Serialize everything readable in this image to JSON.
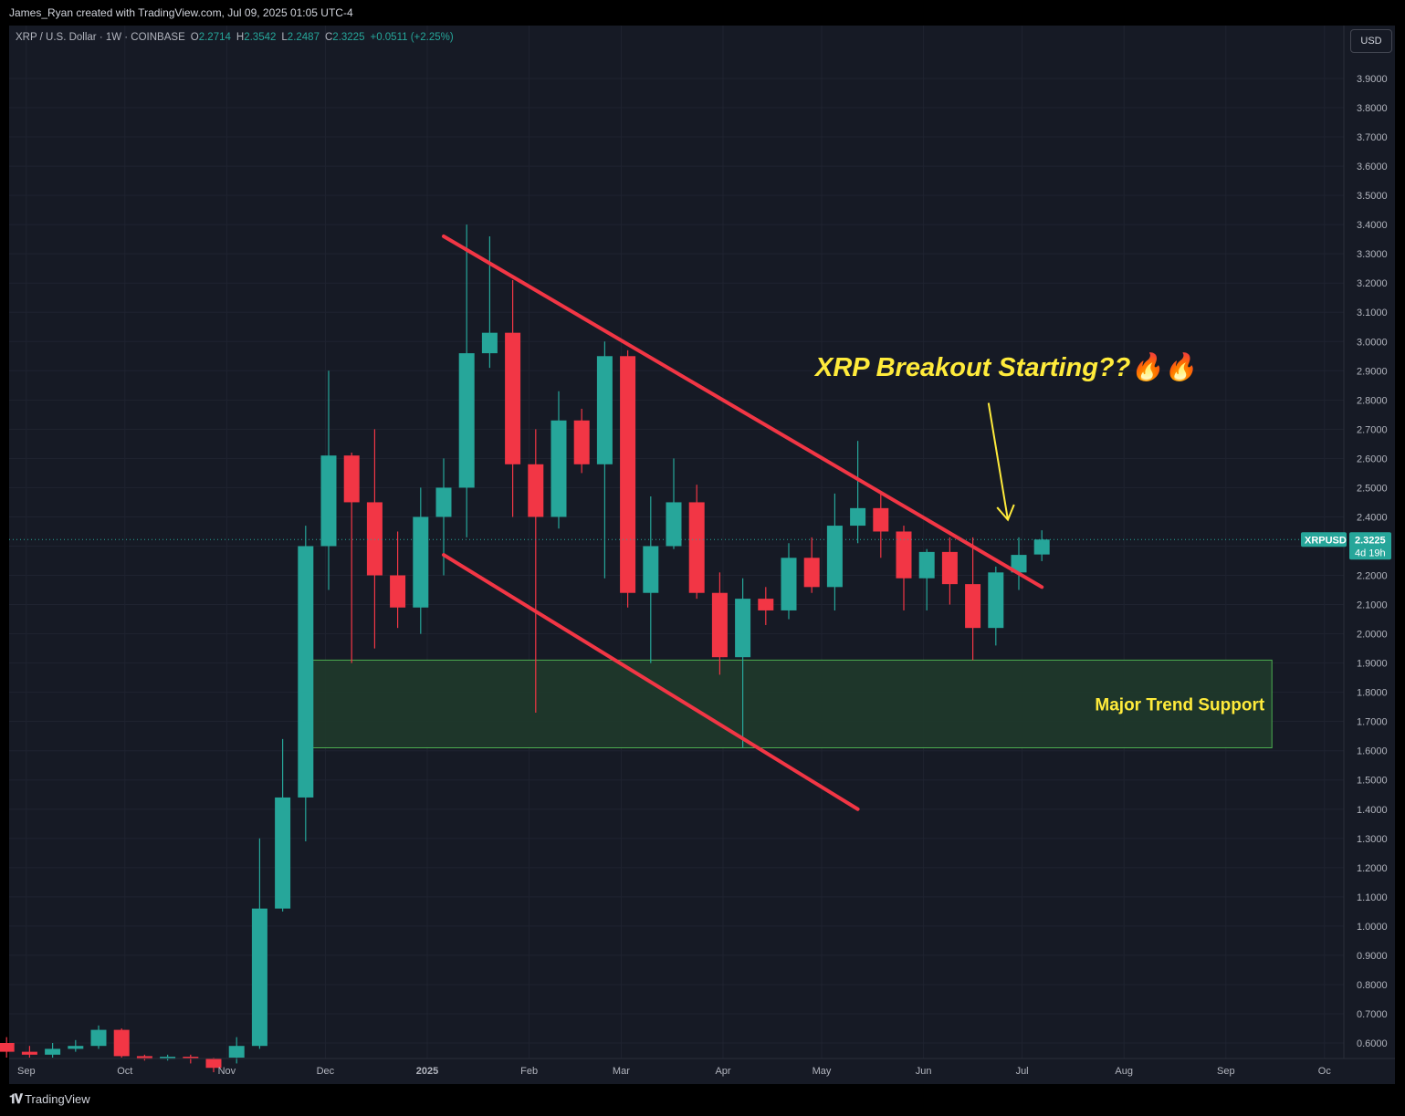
{
  "header": {
    "attribution": "James_Ryan created with TradingView.com, Jul 09, 2025 01:05 UTC-4"
  },
  "legend": {
    "symbol": "XRP / U.S. Dollar · 1W · COINBASE",
    "o_label": "O",
    "o": "2.2714",
    "h_label": "H",
    "h": "2.3542",
    "l_label": "L",
    "l": "2.2487",
    "c_label": "C",
    "c": "2.3225",
    "change": "+0.0511 (+2.25%)"
  },
  "currency_button": "USD",
  "price_badge": {
    "symbol": "XRPUSD",
    "price": "2.3225",
    "countdown": "4d 19h"
  },
  "footer": {
    "brand": "TradingView"
  },
  "colors": {
    "up": "#26a69a",
    "down": "#f23645",
    "trendline": "#f23645",
    "annotation": "#ffeb3b",
    "support_fill": "#1f3a2b",
    "support_border": "#4caf50"
  },
  "chart_data": {
    "type": "candlestick",
    "ylim": [
      0.55,
      4.0
    ],
    "y_ticks": [
      "0.6000",
      "0.7000",
      "0.8000",
      "0.9000",
      "1.0000",
      "1.1000",
      "1.2000",
      "1.3000",
      "1.4000",
      "1.5000",
      "1.6000",
      "1.7000",
      "1.8000",
      "1.9000",
      "2.0000",
      "2.1000",
      "2.2000",
      "2.3000",
      "2.4000",
      "2.5000",
      "2.6000",
      "2.7000",
      "2.8000",
      "2.9000",
      "3.0000",
      "3.1000",
      "3.2000",
      "3.3000",
      "3.4000",
      "3.5000",
      "3.6000",
      "3.7000",
      "3.8000",
      "3.9000"
    ],
    "x_ticks": [
      {
        "label": "Sep",
        "date": "2024-09-01"
      },
      {
        "label": "Oct",
        "date": "2024-10-01"
      },
      {
        "label": "Nov",
        "date": "2024-11-01"
      },
      {
        "label": "Dec",
        "date": "2024-12-01"
      },
      {
        "label": "2025",
        "date": "2025-01-01"
      },
      {
        "label": "Feb",
        "date": "2025-02-01"
      },
      {
        "label": "Mar",
        "date": "2025-03-01"
      },
      {
        "label": "Apr",
        "date": "2025-04-01"
      },
      {
        "label": "May",
        "date": "2025-05-01"
      },
      {
        "label": "Jun",
        "date": "2025-06-01"
      },
      {
        "label": "Jul",
        "date": "2025-07-01"
      },
      {
        "label": "Aug",
        "date": "2025-08-01"
      },
      {
        "label": "Sep",
        "date": "2025-09-01"
      },
      {
        "label": "Oc",
        "date": "2025-10-01"
      }
    ],
    "candles": [
      {
        "date": "2024-08-26",
        "o": 0.6,
        "h": 0.62,
        "l": 0.55,
        "c": 0.57
      },
      {
        "date": "2024-09-02",
        "o": 0.57,
        "h": 0.59,
        "l": 0.55,
        "c": 0.56
      },
      {
        "date": "2024-09-09",
        "o": 0.56,
        "h": 0.6,
        "l": 0.55,
        "c": 0.58
      },
      {
        "date": "2024-09-16",
        "o": 0.58,
        "h": 0.61,
        "l": 0.57,
        "c": 0.59
      },
      {
        "date": "2024-09-23",
        "o": 0.59,
        "h": 0.66,
        "l": 0.58,
        "c": 0.645
      },
      {
        "date": "2024-09-30",
        "o": 0.645,
        "h": 0.65,
        "l": 0.55,
        "c": 0.555
      },
      {
        "date": "2024-10-07",
        "o": 0.555,
        "h": 0.56,
        "l": 0.54,
        "c": 0.545
      },
      {
        "date": "2024-10-14",
        "o": 0.545,
        "h": 0.56,
        "l": 0.54,
        "c": 0.553
      },
      {
        "date": "2024-10-21",
        "o": 0.553,
        "h": 0.56,
        "l": 0.53,
        "c": 0.548
      },
      {
        "date": "2024-10-28",
        "o": 0.548,
        "h": 0.55,
        "l": 0.5,
        "c": 0.515
      },
      {
        "date": "2024-11-04",
        "o": 0.55,
        "h": 0.62,
        "l": 0.53,
        "c": 0.59
      },
      {
        "date": "2024-11-11",
        "o": 0.59,
        "h": 1.3,
        "l": 0.58,
        "c": 1.06
      },
      {
        "date": "2024-11-18",
        "o": 1.06,
        "h": 1.64,
        "l": 1.05,
        "c": 1.44
      },
      {
        "date": "2024-11-25",
        "o": 1.44,
        "h": 2.37,
        "l": 1.29,
        "c": 2.3
      },
      {
        "date": "2024-12-02",
        "o": 2.3,
        "h": 2.9,
        "l": 2.15,
        "c": 2.61
      },
      {
        "date": "2024-12-09",
        "o": 2.61,
        "h": 2.62,
        "l": 1.9,
        "c": 2.45
      },
      {
        "date": "2024-12-16",
        "o": 2.45,
        "h": 2.7,
        "l": 1.95,
        "c": 2.2
      },
      {
        "date": "2024-12-23",
        "o": 2.2,
        "h": 2.35,
        "l": 2.02,
        "c": 2.09
      },
      {
        "date": "2024-12-30",
        "o": 2.09,
        "h": 2.5,
        "l": 2.0,
        "c": 2.4
      },
      {
        "date": "2025-01-06",
        "o": 2.4,
        "h": 2.6,
        "l": 2.2,
        "c": 2.5
      },
      {
        "date": "2025-01-13",
        "o": 2.5,
        "h": 3.4,
        "l": 2.33,
        "c": 2.96
      },
      {
        "date": "2025-01-20",
        "o": 2.96,
        "h": 3.36,
        "l": 2.91,
        "c": 3.03
      },
      {
        "date": "2025-01-27",
        "o": 3.03,
        "h": 3.21,
        "l": 2.4,
        "c": 2.58
      },
      {
        "date": "2025-02-03",
        "o": 2.58,
        "h": 2.7,
        "l": 1.73,
        "c": 2.4
      },
      {
        "date": "2025-02-10",
        "o": 2.4,
        "h": 2.83,
        "l": 2.36,
        "c": 2.73
      },
      {
        "date": "2025-02-17",
        "o": 2.73,
        "h": 2.77,
        "l": 2.55,
        "c": 2.58
      },
      {
        "date": "2025-02-24",
        "o": 2.58,
        "h": 3.0,
        "l": 2.19,
        "c": 2.95
      },
      {
        "date": "2025-03-03",
        "o": 2.95,
        "h": 2.97,
        "l": 2.09,
        "c": 2.14
      },
      {
        "date": "2025-03-10",
        "o": 2.14,
        "h": 2.47,
        "l": 1.9,
        "c": 2.3
      },
      {
        "date": "2025-03-17",
        "o": 2.3,
        "h": 2.6,
        "l": 2.29,
        "c": 2.45
      },
      {
        "date": "2025-03-24",
        "o": 2.45,
        "h": 2.51,
        "l": 2.12,
        "c": 2.14
      },
      {
        "date": "2025-03-31",
        "o": 2.14,
        "h": 2.21,
        "l": 1.86,
        "c": 1.92
      },
      {
        "date": "2025-04-07",
        "o": 1.92,
        "h": 2.19,
        "l": 1.61,
        "c": 2.12
      },
      {
        "date": "2025-04-14",
        "o": 2.12,
        "h": 2.16,
        "l": 2.03,
        "c": 2.08
      },
      {
        "date": "2025-04-21",
        "o": 2.08,
        "h": 2.31,
        "l": 2.05,
        "c": 2.26
      },
      {
        "date": "2025-04-28",
        "o": 2.26,
        "h": 2.33,
        "l": 2.14,
        "c": 2.16
      },
      {
        "date": "2025-05-05",
        "o": 2.16,
        "h": 2.48,
        "l": 2.08,
        "c": 2.37
      },
      {
        "date": "2025-05-12",
        "o": 2.37,
        "h": 2.66,
        "l": 2.31,
        "c": 2.43
      },
      {
        "date": "2025-05-19",
        "o": 2.43,
        "h": 2.48,
        "l": 2.26,
        "c": 2.35
      },
      {
        "date": "2025-05-26",
        "o": 2.35,
        "h": 2.37,
        "l": 2.08,
        "c": 2.19
      },
      {
        "date": "2025-06-02",
        "o": 2.19,
        "h": 2.29,
        "l": 2.08,
        "c": 2.28
      },
      {
        "date": "2025-06-09",
        "o": 2.28,
        "h": 2.33,
        "l": 2.1,
        "c": 2.17
      },
      {
        "date": "2025-06-16",
        "o": 2.17,
        "h": 2.33,
        "l": 1.91,
        "c": 2.02
      },
      {
        "date": "2025-06-23",
        "o": 2.02,
        "h": 2.23,
        "l": 1.96,
        "c": 2.21
      },
      {
        "date": "2025-06-30",
        "o": 2.21,
        "h": 2.33,
        "l": 2.15,
        "c": 2.27
      },
      {
        "date": "2025-07-07",
        "o": 2.2714,
        "h": 2.3542,
        "l": 2.2487,
        "c": 2.3225
      }
    ],
    "trendlines": [
      {
        "name": "upper",
        "from": {
          "date": "2025-01-06",
          "price": 3.36
        },
        "to": {
          "date": "2025-07-07",
          "price": 2.16
        }
      },
      {
        "name": "lower",
        "from": {
          "date": "2025-01-06",
          "price": 2.27
        },
        "to": {
          "date": "2025-05-12",
          "price": 1.4
        }
      }
    ],
    "support_zone": {
      "label": "Major Trend Support",
      "from_date": "2024-11-25",
      "to_date": "2025-09-15",
      "low": 1.61,
      "high": 1.91
    },
    "annotation": {
      "text": "XRP Breakout Starting??🔥🔥"
    },
    "arrow": {
      "from": {
        "date": "2025-06-23",
        "price": 2.79
      },
      "to": {
        "date": "2025-06-30",
        "price": 2.39
      }
    },
    "last_price": 2.3225
  }
}
